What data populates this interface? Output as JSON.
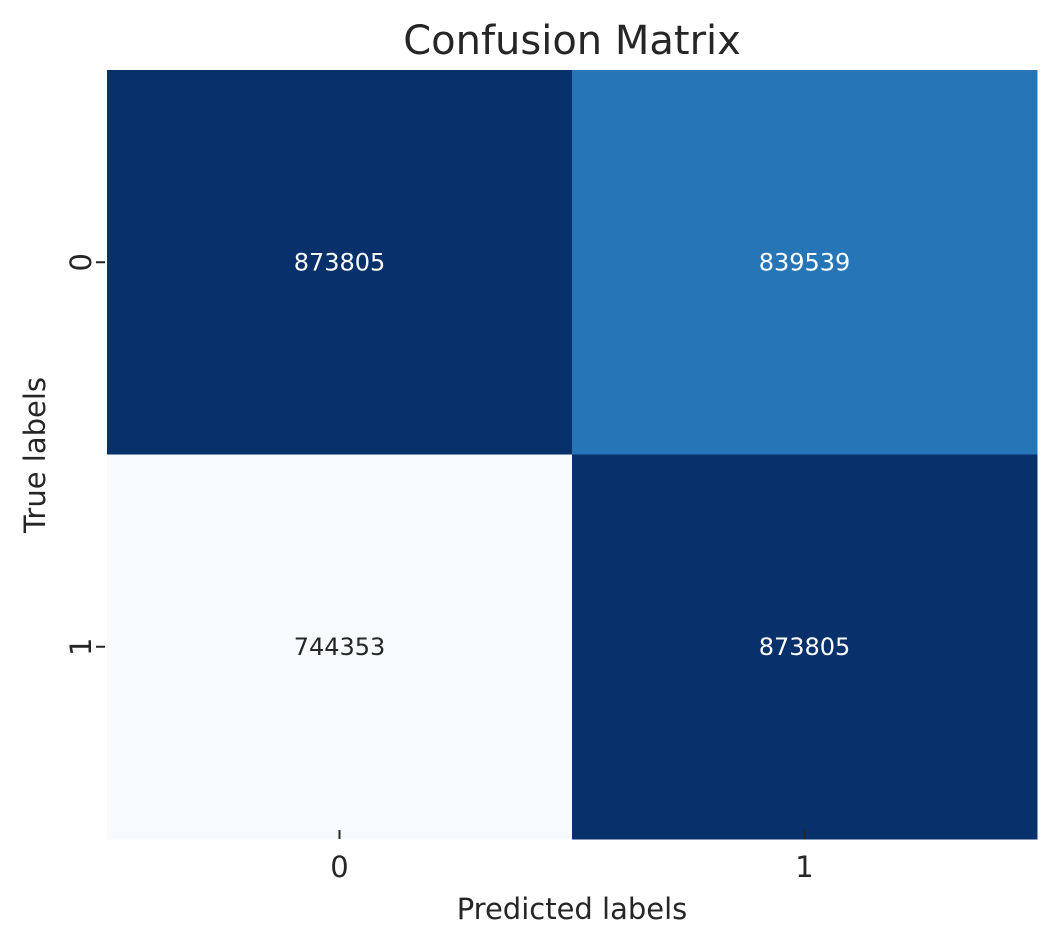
{
  "chart_data": {
    "type": "heatmap",
    "title": "Confusion Matrix",
    "xlabel": "Predicted labels",
    "ylabel": "True labels",
    "x_categories": [
      "0",
      "1"
    ],
    "y_categories": [
      "0",
      "1"
    ],
    "values": [
      [
        873805,
        839539
      ],
      [
        744353,
        873805
      ]
    ],
    "colormap": "Blues",
    "colorbar": false,
    "grid": false
  }
}
